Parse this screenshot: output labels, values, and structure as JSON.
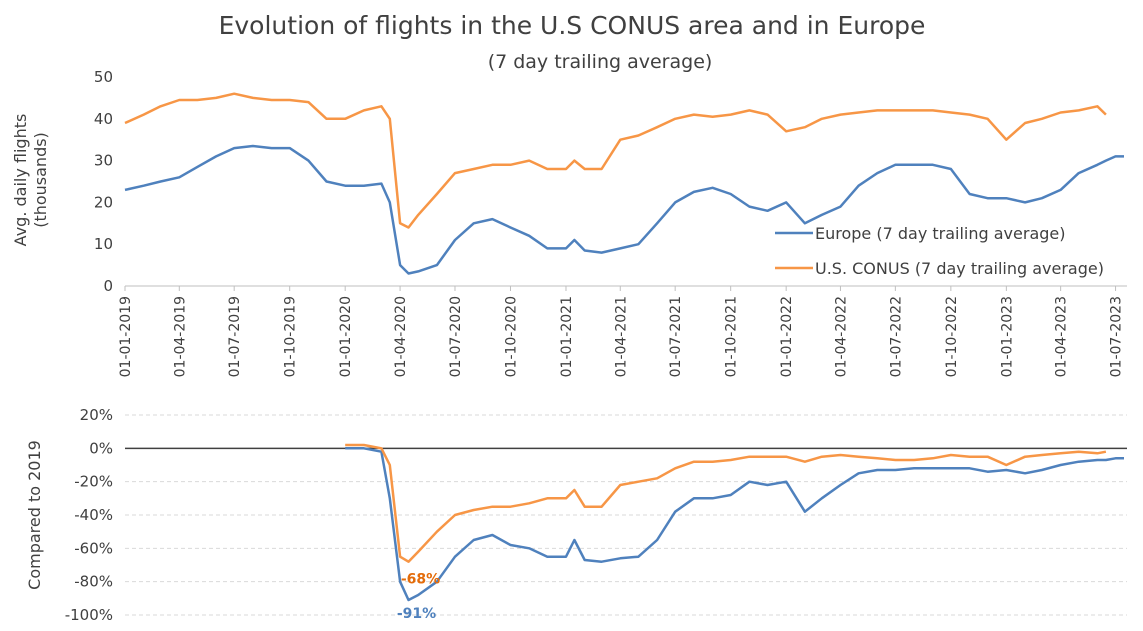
{
  "chart_data": [
    {
      "type": "line",
      "title": "Evolution of flights in the U.S CONUS area and in Europe",
      "subtitle": "(7 day trailing average)",
      "ylabel": [
        "Avg. daily flights",
        "(thousands)"
      ],
      "xlim": [
        "01-01-2019",
        "20-07-2023"
      ],
      "xticks": [
        "01-01-2019",
        "01-04-2019",
        "01-07-2019",
        "01-10-2019",
        "01-01-2020",
        "01-04-2020",
        "01-07-2020",
        "01-10-2020",
        "01-01-2021",
        "01-04-2021",
        "01-07-2021",
        "01-10-2021",
        "01-01-2022",
        "01-04-2022",
        "01-07-2022",
        "01-10-2022",
        "01-01-2023",
        "01-04-2023",
        "01-07-2023"
      ],
      "ylim": [
        0,
        50
      ],
      "yticks": [
        0,
        10,
        20,
        30,
        40,
        50
      ],
      "grid": false,
      "legend": "right",
      "x": [
        "01-01-2019",
        "01-02-2019",
        "01-03-2019",
        "01-04-2019",
        "01-05-2019",
        "01-06-2019",
        "01-07-2019",
        "01-08-2019",
        "01-09-2019",
        "01-10-2019",
        "01-11-2019",
        "01-12-2019",
        "01-01-2020",
        "01-02-2020",
        "01-03-2020",
        "15-03-2020",
        "01-04-2020",
        "15-04-2020",
        "01-05-2020",
        "01-06-2020",
        "01-07-2020",
        "01-08-2020",
        "01-09-2020",
        "01-10-2020",
        "01-11-2020",
        "01-12-2020",
        "01-01-2021",
        "15-01-2021",
        "01-02-2021",
        "01-03-2021",
        "01-04-2021",
        "01-05-2021",
        "01-06-2021",
        "01-07-2021",
        "01-08-2021",
        "01-09-2021",
        "01-10-2021",
        "01-11-2021",
        "01-12-2021",
        "01-01-2022",
        "01-02-2022",
        "01-03-2022",
        "01-04-2022",
        "01-05-2022",
        "01-06-2022",
        "01-07-2022",
        "01-08-2022",
        "01-09-2022",
        "01-10-2022",
        "01-11-2022",
        "01-12-2022",
        "01-01-2023",
        "01-02-2023",
        "01-03-2023",
        "01-04-2023",
        "01-05-2023",
        "01-06-2023",
        "15-06-2023",
        "01-07-2023",
        "15-07-2023"
      ],
      "series": [
        {
          "name": "Europe (7 day trailing average)",
          "color": "#4f81bd",
          "values": [
            23,
            24,
            25,
            26,
            28.5,
            31,
            33,
            33.5,
            33,
            33,
            30,
            25,
            24,
            24,
            24.5,
            20,
            5,
            3,
            3.5,
            5,
            11,
            15,
            16,
            14,
            12,
            9,
            9,
            11,
            8.5,
            8,
            9,
            10,
            15,
            20,
            22.5,
            23.5,
            22,
            19,
            18,
            20,
            15,
            17,
            19,
            24,
            27,
            29,
            29,
            29,
            28,
            22,
            21,
            21,
            20,
            21,
            23,
            27,
            29,
            30,
            31,
            31
          ]
        },
        {
          "name": "U.S. CONUS (7 day trailing average)",
          "color": "#f79646",
          "values": [
            39,
            41,
            43,
            44.5,
            44.5,
            45,
            46,
            45,
            44.5,
            44.5,
            44,
            40,
            40,
            42,
            43,
            40,
            15,
            14,
            17,
            22,
            27,
            28,
            29,
            29,
            30,
            28,
            28,
            30,
            28,
            28,
            35,
            36,
            38,
            40,
            41,
            40.5,
            41,
            42,
            41,
            37,
            38,
            40,
            41,
            41.5,
            42,
            42,
            42,
            42,
            41.5,
            41,
            40,
            35,
            39,
            40,
            41.5,
            42,
            43,
            41,
            null,
            null
          ]
        }
      ]
    },
    {
      "type": "line",
      "ylabel": "Compared to 2019",
      "xlim": [
        "01-01-2019",
        "20-07-2023"
      ],
      "ylim": [
        -100,
        20
      ],
      "yticks": [
        {
          "value": 20,
          "label": "20%"
        },
        {
          "value": 0,
          "label": "0%"
        },
        {
          "value": -20,
          "label": "-20%"
        },
        {
          "value": -40,
          "label": "-40%"
        },
        {
          "value": -60,
          "label": "-60%"
        },
        {
          "value": -80,
          "label": "-80%"
        },
        {
          "value": -100,
          "label": "-100%"
        }
      ],
      "grid": true,
      "x": [
        "01-01-2020",
        "01-02-2020",
        "01-03-2020",
        "15-03-2020",
        "01-04-2020",
        "15-04-2020",
        "01-05-2020",
        "01-06-2020",
        "01-07-2020",
        "01-08-2020",
        "01-09-2020",
        "01-10-2020",
        "01-11-2020",
        "01-12-2020",
        "01-01-2021",
        "15-01-2021",
        "01-02-2021",
        "01-03-2021",
        "01-04-2021",
        "01-05-2021",
        "01-06-2021",
        "01-07-2021",
        "01-08-2021",
        "01-09-2021",
        "01-10-2021",
        "01-11-2021",
        "01-12-2021",
        "01-01-2022",
        "01-02-2022",
        "01-03-2022",
        "01-04-2022",
        "01-05-2022",
        "01-06-2022",
        "01-07-2022",
        "01-08-2022",
        "01-09-2022",
        "01-10-2022",
        "01-11-2022",
        "01-12-2022",
        "01-01-2023",
        "01-02-2023",
        "01-03-2023",
        "01-04-2023",
        "01-05-2023",
        "01-06-2023",
        "15-06-2023",
        "01-07-2023",
        "15-07-2023"
      ],
      "series": [
        {
          "name": "Europe",
          "color": "#4f81bd",
          "values": [
            0,
            0,
            -2,
            -30,
            -80,
            -91,
            -88,
            -80,
            -65,
            -55,
            -52,
            -58,
            -60,
            -65,
            -65,
            -55,
            -67,
            -68,
            -66,
            -65,
            -55,
            -38,
            -30,
            -30,
            -28,
            -20,
            -22,
            -20,
            -38,
            -30,
            -22,
            -15,
            -13,
            -13,
            -12,
            -12,
            -12,
            -12,
            -14,
            -13,
            -15,
            -13,
            -10,
            -8,
            -7,
            -7,
            -6,
            -6
          ]
        },
        {
          "name": "U.S. CONUS",
          "color": "#f79646",
          "values": [
            2,
            2,
            0,
            -10,
            -65,
            -68,
            -62,
            -50,
            -40,
            -37,
            -35,
            -35,
            -33,
            -30,
            -30,
            -25,
            -35,
            -35,
            -22,
            -20,
            -18,
            -12,
            -8,
            -8,
            -7,
            -5,
            -5,
            -5,
            -8,
            -5,
            -4,
            -5,
            -6,
            -7,
            -7,
            -6,
            -4,
            -5,
            -5,
            -10,
            -5,
            -4,
            -3,
            -2,
            -3,
            -2,
            null,
            null
          ]
        }
      ],
      "annotations": [
        {
          "text": "-68%",
          "x": "15-04-2020",
          "y": -68,
          "color": "#e46c0a"
        },
        {
          "text": "-91%",
          "x": "15-04-2020",
          "y": -91,
          "color": "#4f81bd"
        }
      ]
    }
  ]
}
